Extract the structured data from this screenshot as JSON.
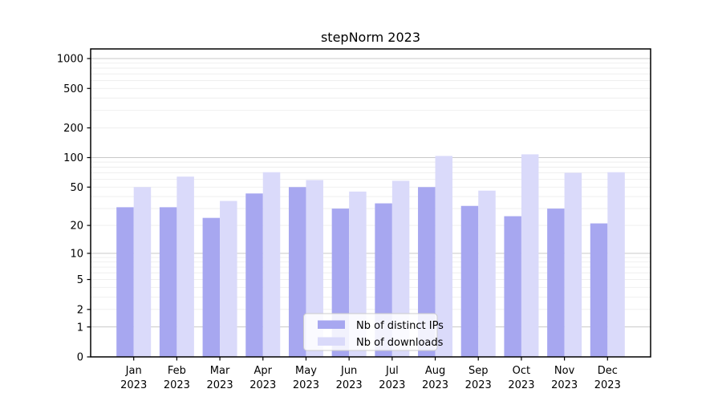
{
  "chart_data": {
    "type": "bar",
    "title": "stepNorm 2023",
    "scale": "log1p",
    "grid": true,
    "legend_position": "lower center",
    "categories": [
      "Jan",
      "Feb",
      "Mar",
      "Apr",
      "May",
      "Jun",
      "Jul",
      "Aug",
      "Sep",
      "Oct",
      "Nov",
      "Dec"
    ],
    "year_label": "2023",
    "series": [
      {
        "name": "Nb of distinct IPs",
        "color": "#a7a7f0",
        "values": [
          31,
          31,
          24,
          43,
          50,
          30,
          34,
          50,
          32,
          25,
          30,
          21
        ]
      },
      {
        "name": "Nb of downloads",
        "color": "#dadafA",
        "values": [
          50,
          64,
          36,
          71,
          59,
          45,
          58,
          104,
          46,
          108,
          70,
          71
        ]
      }
    ],
    "y_ticks": [
      0,
      1,
      2,
      5,
      10,
      20,
      50,
      100,
      200,
      500,
      1000
    ],
    "ylim": [
      0,
      1250
    ],
    "xlabel": "",
    "ylabel": ""
  },
  "style": {
    "major_grid_color": "#c9c9c9",
    "minor_grid_color": "#ededed",
    "spine_color": "#000000",
    "legend_border_color": "#cccccc",
    "legend_bg": "rgba(255,255,255,0.85)"
  }
}
